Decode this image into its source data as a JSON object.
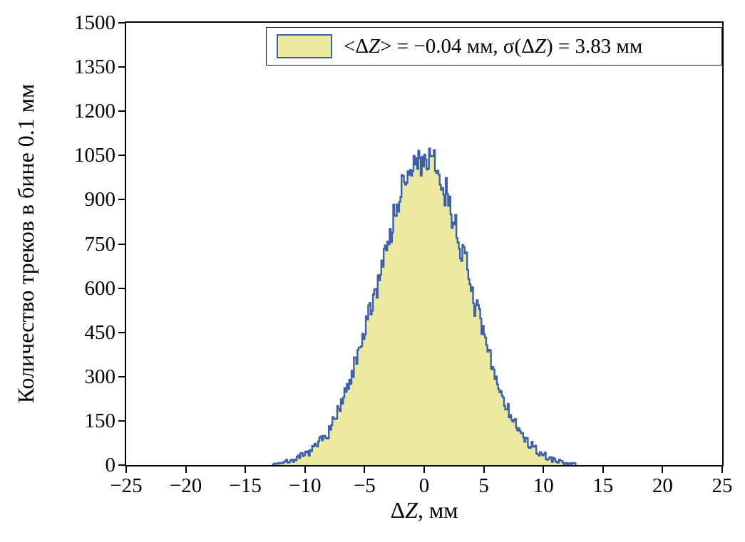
{
  "chart_data": {
    "type": "histogram",
    "title": "",
    "xlabel": "ΔZ, мм",
    "ylabel": "Количество треков в бине 0.1 мм",
    "legend": [
      "<ΔZ> = −0.04 мм, σ(ΔZ) = 3.83 мм"
    ],
    "legend_position": "top-right-inside",
    "xlim": [
      -25,
      25
    ],
    "ylim": [
      0,
      1500
    ],
    "xticks": [
      -25,
      -20,
      -15,
      -10,
      -5,
      0,
      5,
      10,
      15,
      20,
      25
    ],
    "yticks": [
      0,
      150,
      300,
      450,
      600,
      750,
      900,
      1050,
      1200,
      1350,
      1500
    ],
    "bin_width_mm": 0.1,
    "distribution": {
      "shape": "gaussian",
      "mean_mm": -0.04,
      "sigma_mm": 3.83,
      "peak_count": 1035,
      "x_extent": [
        -12.7,
        12.7
      ]
    },
    "grid": false,
    "fill_color": "#ece9a0",
    "line_color": "#3b5fa9",
    "frame_color": "#000000"
  }
}
